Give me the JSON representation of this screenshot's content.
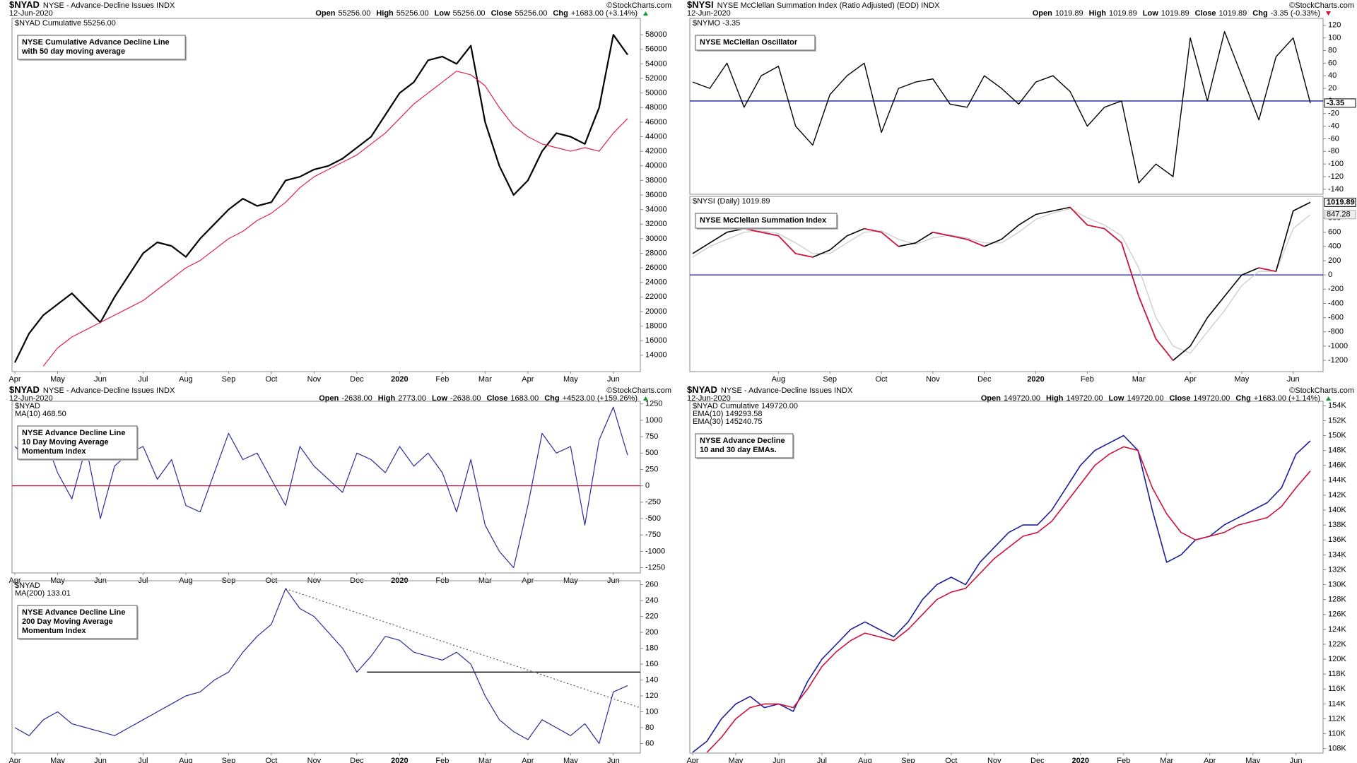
{
  "chart_data": [
    {
      "type": "line",
      "symbol": "$NYAD",
      "name": "NYSE - Advance-Decline Issues INDX",
      "date": "12-Jun-2020",
      "quote": [
        {
          "label": "Open",
          "value": "55256.00"
        },
        {
          "label": "High",
          "value": "55256.00"
        },
        {
          "label": "Low",
          "value": "55256.00"
        },
        {
          "label": "Close",
          "value": "55256.00"
        },
        {
          "label": "Chg",
          "value": "+1683.00 (+3.14%)"
        }
      ],
      "change_direction": "up",
      "credit": "©StockCharts.com",
      "annotation": [
        "NYSE Cumulative Advance Decline Line",
        "with 50 day moving average"
      ],
      "categories": [
        "Apr",
        null,
        null,
        "May",
        null,
        null,
        "Jun",
        null,
        null,
        "Jul",
        null,
        null,
        "Aug",
        null,
        null,
        "Sep",
        null,
        null,
        "Oct",
        null,
        null,
        "Nov",
        null,
        null,
        "Dec",
        null,
        null,
        "2020",
        null,
        null,
        "Feb",
        null,
        null,
        "Mar",
        null,
        null,
        "Apr",
        null,
        null,
        "May",
        null,
        null,
        "Jun",
        null
      ],
      "series": [
        {
          "name": "$NYAD Cumulative 55256.00",
          "color": "#000000",
          "width": 2.2,
          "values": [
            13000,
            17000,
            19500,
            21000,
            22500,
            20500,
            18500,
            22000,
            25000,
            28000,
            29500,
            29000,
            27500,
            30000,
            32000,
            34000,
            35500,
            34500,
            35000,
            38000,
            38500,
            39500,
            40000,
            41000,
            42500,
            44000,
            47000,
            50000,
            51500,
            54500,
            55000,
            54000,
            56500,
            46000,
            40000,
            36000,
            38000,
            42000,
            44500,
            44000,
            43000,
            48000,
            58000,
            55256
          ]
        },
        {
          "color": "#e0204a",
          "width": 1.2,
          "values": [
            null,
            null,
            12500,
            15000,
            16500,
            17500,
            18500,
            19500,
            20500,
            21500,
            23000,
            24500,
            26000,
            27000,
            28500,
            30000,
            31000,
            32500,
            33500,
            35000,
            37000,
            38500,
            39500,
            40500,
            41500,
            43000,
            44500,
            46500,
            48500,
            50000,
            51500,
            53000,
            52500,
            51000,
            48000,
            45500,
            44000,
            43000,
            42500,
            42000,
            42500,
            42000,
            44500,
            46500
          ]
        }
      ],
      "ylim": [
        11750,
        60250
      ],
      "yticks": [
        14000,
        16000,
        18000,
        20000,
        22000,
        24000,
        26000,
        28000,
        30000,
        32000,
        34000,
        36000,
        38000,
        40000,
        42000,
        44000,
        46000,
        48000,
        50000,
        52000,
        54000,
        56000,
        58000
      ]
    },
    {
      "type": "line",
      "symbol": "$NYSI",
      "name": "NYSE McClellan Summation Index (Ratio Adjusted) (EOD) INDX",
      "date": "12-Jun-2020",
      "quote": [
        {
          "label": "Open",
          "value": "1019.89"
        },
        {
          "label": "High",
          "value": "1019.89"
        },
        {
          "label": "Low",
          "value": "1019.89"
        },
        {
          "label": "Close",
          "value": "1019.89"
        },
        {
          "label": "Chg",
          "value": "-3.35 (-0.33%)"
        }
      ],
      "change_direction": "down",
      "credit": "©StockCharts.com",
      "annotation": [
        "NYSE McClellan Oscillator"
      ],
      "categories": [
        null,
        null,
        null,
        null,
        null,
        "Aug",
        null,
        null,
        "Sep",
        null,
        null,
        "Oct",
        null,
        null,
        "Nov",
        null,
        null,
        "Dec",
        null,
        null,
        "2020",
        null,
        null,
        "Feb",
        null,
        null,
        "Mar",
        null,
        null,
        "Apr",
        null,
        null,
        "May",
        null,
        null,
        "Jun",
        null
      ],
      "series": [
        {
          "name": "$NYMO -3.35",
          "color": "#000000",
          "width": 1.4,
          "show_last": true,
          "values": [
            30,
            20,
            60,
            -10,
            40,
            55,
            -40,
            -70,
            10,
            40,
            60,
            -50,
            20,
            30,
            35,
            -5,
            -10,
            40,
            20,
            -5,
            30,
            40,
            15,
            -40,
            -10,
            0,
            -130,
            -100,
            -120,
            100,
            0,
            110,
            40,
            -30,
            70,
            100,
            -3.35
          ]
        }
      ],
      "hlines": [
        {
          "value": 0,
          "color": "#1c1c9c"
        }
      ],
      "ylim": [
        -148,
        131
      ],
      "yticks": [
        -140,
        -120,
        -100,
        -80,
        -60,
        -40,
        -20,
        0,
        20,
        40,
        60,
        80,
        100,
        120
      ]
    },
    {
      "type": "line",
      "annotation": [
        "NYSE McClellan Summation Index"
      ],
      "categories": [
        null,
        null,
        null,
        null,
        null,
        "Aug",
        null,
        null,
        "Sep",
        null,
        null,
        "Oct",
        null,
        null,
        "Nov",
        null,
        null,
        "Dec",
        null,
        null,
        "2020",
        null,
        null,
        "Feb",
        null,
        null,
        "Mar",
        null,
        null,
        "Apr",
        null,
        null,
        "May",
        null,
        null,
        "Jun",
        null
      ],
      "series": [
        {
          "color": "#c8c8c8",
          "width": 1.2,
          "show_last": true,
          "values": [
            250,
            400,
            500,
            600,
            620,
            580,
            450,
            300,
            300,
            450,
            600,
            620,
            500,
            430,
            520,
            560,
            520,
            450,
            450,
            600,
            780,
            870,
            930,
            800,
            700,
            550,
            100,
            -600,
            -1000,
            -1100,
            -800,
            -500,
            -150,
            50,
            50,
            650,
            847.28
          ]
        },
        {
          "name": "$NYSI (Daily) 1019.89",
          "color": "#000000",
          "decline_color": "#e0103c",
          "width": 1.6,
          "show_last": true,
          "values": [
            300,
            450,
            600,
            650,
            600,
            550,
            300,
            250,
            350,
            550,
            650,
            600,
            400,
            450,
            600,
            550,
            500,
            400,
            500,
            700,
            850,
            900,
            950,
            700,
            650,
            450,
            -300,
            -900,
            -1200,
            -1000,
            -600,
            -300,
            0,
            100,
            50,
            900,
            1019.89
          ]
        }
      ],
      "hlines": [
        {
          "value": 0,
          "color": "#1c1c9c"
        }
      ],
      "ylim": [
        -1358,
        1103
      ],
      "yticks": [
        -1200,
        -1000,
        -800,
        -600,
        -400,
        -200,
        0,
        200,
        400,
        600,
        800
      ]
    },
    {
      "type": "line",
      "symbol": "$NYAD",
      "name": "NYSE - Advance-Decline Issues INDX",
      "date": "12-Jun-2020",
      "quote": [
        {
          "label": "Open",
          "value": "-2638.00"
        },
        {
          "label": "High",
          "value": "2773.00"
        },
        {
          "label": "Low",
          "value": "-2638.00"
        },
        {
          "label": "Close",
          "value": "1683.00"
        },
        {
          "label": "Chg",
          "value": "+4523.00 (+159.26%)"
        }
      ],
      "change_direction": "up",
      "credit": "©StockCharts.com",
      "legend_title": "$NYAD",
      "annotation": [
        "NYSE Advance Decline Line",
        "10 Day Moving Average",
        "Momentum Index"
      ],
      "categories": [
        "Apr",
        null,
        null,
        "May",
        null,
        null,
        "Jun",
        null,
        null,
        "Jul",
        null,
        null,
        "Aug",
        null,
        null,
        "Sep",
        null,
        null,
        "Oct",
        null,
        null,
        "Nov",
        null,
        null,
        "Dec",
        null,
        null,
        "2020",
        null,
        null,
        "Feb",
        null,
        null,
        "Mar",
        null,
        null,
        "Apr",
        null,
        null,
        "May",
        null,
        null,
        "Jun",
        null
      ],
      "series": [
        {
          "name": "MA(10) 468.50",
          "color": "#2a2a9a",
          "width": 1.2,
          "values": [
            600,
            400,
            800,
            200,
            -200,
            600,
            -500,
            300,
            500,
            600,
            100,
            400,
            -300,
            -400,
            200,
            800,
            400,
            500,
            100,
            -300,
            600,
            300,
            100,
            -100,
            500,
            400,
            200,
            600,
            300,
            500,
            200,
            -400,
            400,
            -600,
            -1000,
            -1250,
            -300,
            800,
            500,
            600,
            -600,
            700,
            1200,
            468.5
          ]
        }
      ],
      "hlines": [
        {
          "value": 0,
          "color": "#d0103a"
        }
      ],
      "ylim": [
        -1330,
        1290
      ],
      "yticks": [
        -1250,
        -1000,
        -750,
        -500,
        -250,
        0,
        250,
        500,
        750,
        1000,
        1250
      ]
    },
    {
      "type": "line",
      "legend_title": "$NYAD",
      "annotation": [
        "NYSE Advance Decline Line",
        "200 Day Moving Average",
        "Momentum Index"
      ],
      "categories": [
        "Apr",
        null,
        null,
        "May",
        null,
        null,
        "Jun",
        null,
        null,
        "Jul",
        null,
        null,
        "Aug",
        null,
        null,
        "Sep",
        null,
        null,
        "Oct",
        null,
        null,
        "Nov",
        null,
        null,
        "Dec",
        null,
        null,
        "2020",
        null,
        null,
        "Feb",
        null,
        null,
        "Mar",
        null,
        null,
        "Apr",
        null,
        null,
        "May",
        null,
        null,
        "Jun",
        null
      ],
      "series": [
        {
          "name": "MA(200) 133.01",
          "color": "#2a2a9a",
          "width": 1.2,
          "values": [
            80,
            70,
            90,
            100,
            85,
            80,
            75,
            70,
            80,
            90,
            100,
            110,
            120,
            125,
            140,
            150,
            175,
            195,
            210,
            255,
            230,
            220,
            200,
            180,
            150,
            170,
            195,
            190,
            175,
            170,
            165,
            175,
            160,
            120,
            90,
            75,
            65,
            90,
            80,
            70,
            85,
            60,
            125,
            133.01
          ]
        }
      ],
      "hlines": [
        {
          "value": 150,
          "color": "#000000"
        }
      ],
      "trendline": {
        "values": [
          255,
          105
        ],
        "color": "#555555"
      },
      "ylim": [
        48,
        265
      ],
      "yticks": [
        60,
        80,
        100,
        120,
        140,
        160,
        180,
        200,
        220,
        240,
        260
      ]
    },
    {
      "type": "line",
      "symbol": "$NYAD",
      "name": "NYSE - Advance-Decline Issues INDX",
      "date": "12-Jun-2020",
      "quote": [
        {
          "label": "Open",
          "value": "149720.00"
        },
        {
          "label": "High",
          "value": "149720.00"
        },
        {
          "label": "Low",
          "value": "149720.00"
        },
        {
          "label": "Close",
          "value": "149720.00"
        },
        {
          "label": "Chg",
          "value": "+1683.00 (+1.14%)"
        }
      ],
      "change_direction": "up",
      "credit": "©StockCharts.com",
      "legend_title": "$NYAD Cumulative 149720.00",
      "annotation": [
        "NYSE Advance Decline",
        "10 and 30 day EMAs."
      ],
      "categories": [
        "Apr",
        null,
        null,
        "May",
        null,
        null,
        "Jun",
        null,
        null,
        "Jul",
        null,
        null,
        "Aug",
        null,
        null,
        "Sep",
        null,
        null,
        "Oct",
        null,
        null,
        "Nov",
        null,
        null,
        "Dec",
        null,
        null,
        "2020",
        null,
        null,
        "Feb",
        null,
        null,
        "Mar",
        null,
        null,
        "Apr",
        null,
        null,
        "May",
        null,
        null,
        "Jun",
        null
      ],
      "series": [
        {
          "name": "EMA(10) 149293.58",
          "color": "#1c1c9c",
          "width": 1.6,
          "values": [
            107500,
            109000,
            112000,
            114000,
            115000,
            113500,
            114000,
            113000,
            117000,
            120000,
            122000,
            124000,
            125000,
            124000,
            123000,
            125000,
            128000,
            130000,
            131000,
            130000,
            133000,
            135000,
            137000,
            138000,
            138000,
            140000,
            143000,
            146000,
            148000,
            149000,
            150000,
            148000,
            140000,
            133000,
            134000,
            136000,
            136500,
            138000,
            139000,
            140000,
            141000,
            143000,
            147500,
            149293.58
          ]
        },
        {
          "name": "EMA(30) 145240.75",
          "color": "#d0103a",
          "width": 1.6,
          "values": [
            null,
            107500,
            109500,
            112000,
            113500,
            114000,
            114000,
            113500,
            116000,
            119000,
            121000,
            122500,
            123500,
            123000,
            122500,
            124000,
            126000,
            128000,
            129000,
            129500,
            131500,
            133500,
            135000,
            136500,
            137000,
            138500,
            141000,
            143500,
            146000,
            147500,
            148500,
            148000,
            143000,
            139500,
            137000,
            136000,
            136500,
            137000,
            138000,
            138500,
            139000,
            140500,
            143000,
            145240.75
          ]
        }
      ],
      "ylim": [
        107400,
        154600
      ],
      "yticks": [
        {
          "value": 108000,
          "label": "108K"
        },
        {
          "value": 110000,
          "label": "110K"
        },
        {
          "value": 112000,
          "label": "112K"
        },
        {
          "value": 114000,
          "label": "114K"
        },
        {
          "value": 116000,
          "label": "116K"
        },
        {
          "value": 118000,
          "label": "118K"
        },
        {
          "value": 120000,
          "label": "120K"
        },
        {
          "value": 122000,
          "label": "122K"
        },
        {
          "value": 124000,
          "label": "124K"
        },
        {
          "value": 126000,
          "label": "126K"
        },
        {
          "value": 128000,
          "label": "128K"
        },
        {
          "value": 130000,
          "label": "130K"
        },
        {
          "value": 132000,
          "label": "132K"
        },
        {
          "value": 134000,
          "label": "134K"
        },
        {
          "value": 136000,
          "label": "136K"
        },
        {
          "value": 138000,
          "label": "138K"
        },
        {
          "value": 140000,
          "label": "140K"
        },
        {
          "value": 142000,
          "label": "142K"
        },
        {
          "value": 144000,
          "label": "144K"
        },
        {
          "value": 146000,
          "label": "146K"
        },
        {
          "value": 148000,
          "label": "148K"
        },
        {
          "value": 150000,
          "label": "150K"
        },
        {
          "value": 152000,
          "label": "152K"
        },
        {
          "value": 154000,
          "label": "154K"
        }
      ]
    }
  ]
}
